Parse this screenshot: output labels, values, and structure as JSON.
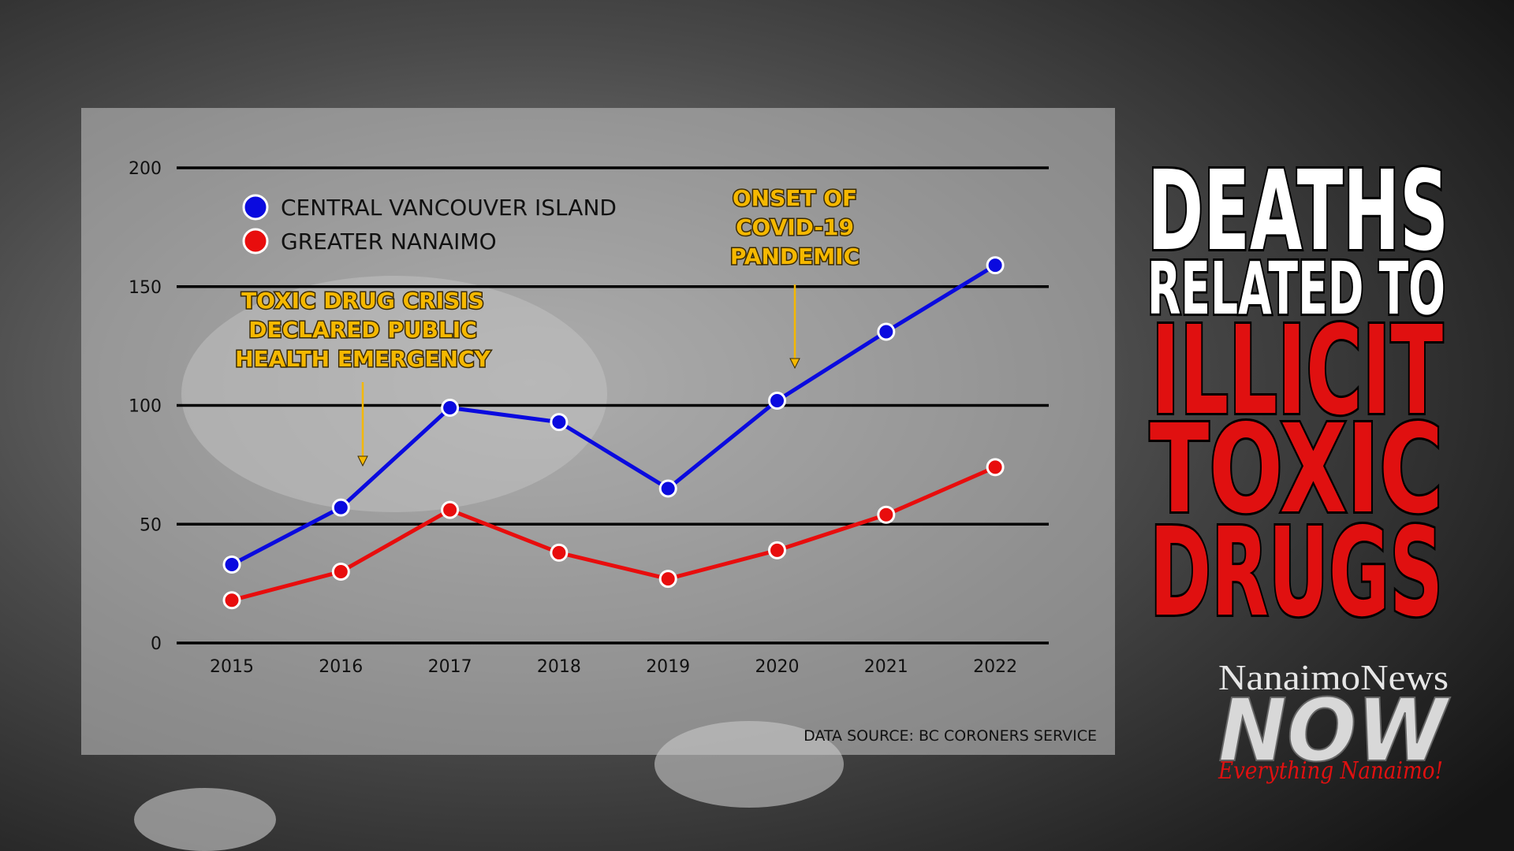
{
  "chart_data": {
    "type": "line",
    "categories": [
      "2015",
      "2016",
      "2017",
      "2018",
      "2019",
      "2020",
      "2021",
      "2022"
    ],
    "series": [
      {
        "name": "CENTRAL VANCOUVER ISLAND",
        "color": "#0a0adf",
        "values": [
          33,
          57,
          99,
          93,
          65,
          102,
          131,
          159
        ]
      },
      {
        "name": "GREATER NANAIMO",
        "color": "#e80d0d",
        "values": [
          18,
          30,
          56,
          38,
          27,
          39,
          54,
          74
        ]
      }
    ],
    "ylim": [
      0,
      200
    ],
    "yticks": [
      0,
      50,
      100,
      150,
      200
    ],
    "grid": true,
    "annotations": [
      {
        "lines": [
          "TOXIC DRUG CRISIS",
          "DECLARED PUBLIC",
          "HEALTH EMERGENCY"
        ]
      },
      {
        "lines": [
          "ONSET OF",
          "COVID-19",
          "PANDEMIC"
        ]
      }
    ],
    "source": "DATA SOURCE: BC CORONERS SERVICE"
  },
  "headline": {
    "lines": [
      "DEATHS",
      "RELATED TO",
      "ILLICIT",
      "TOXIC",
      "DRUGS"
    ]
  },
  "logo": {
    "name": "NanaimoNews",
    "brand": "NOW",
    "tagline": "Everything Nanaimo!"
  }
}
